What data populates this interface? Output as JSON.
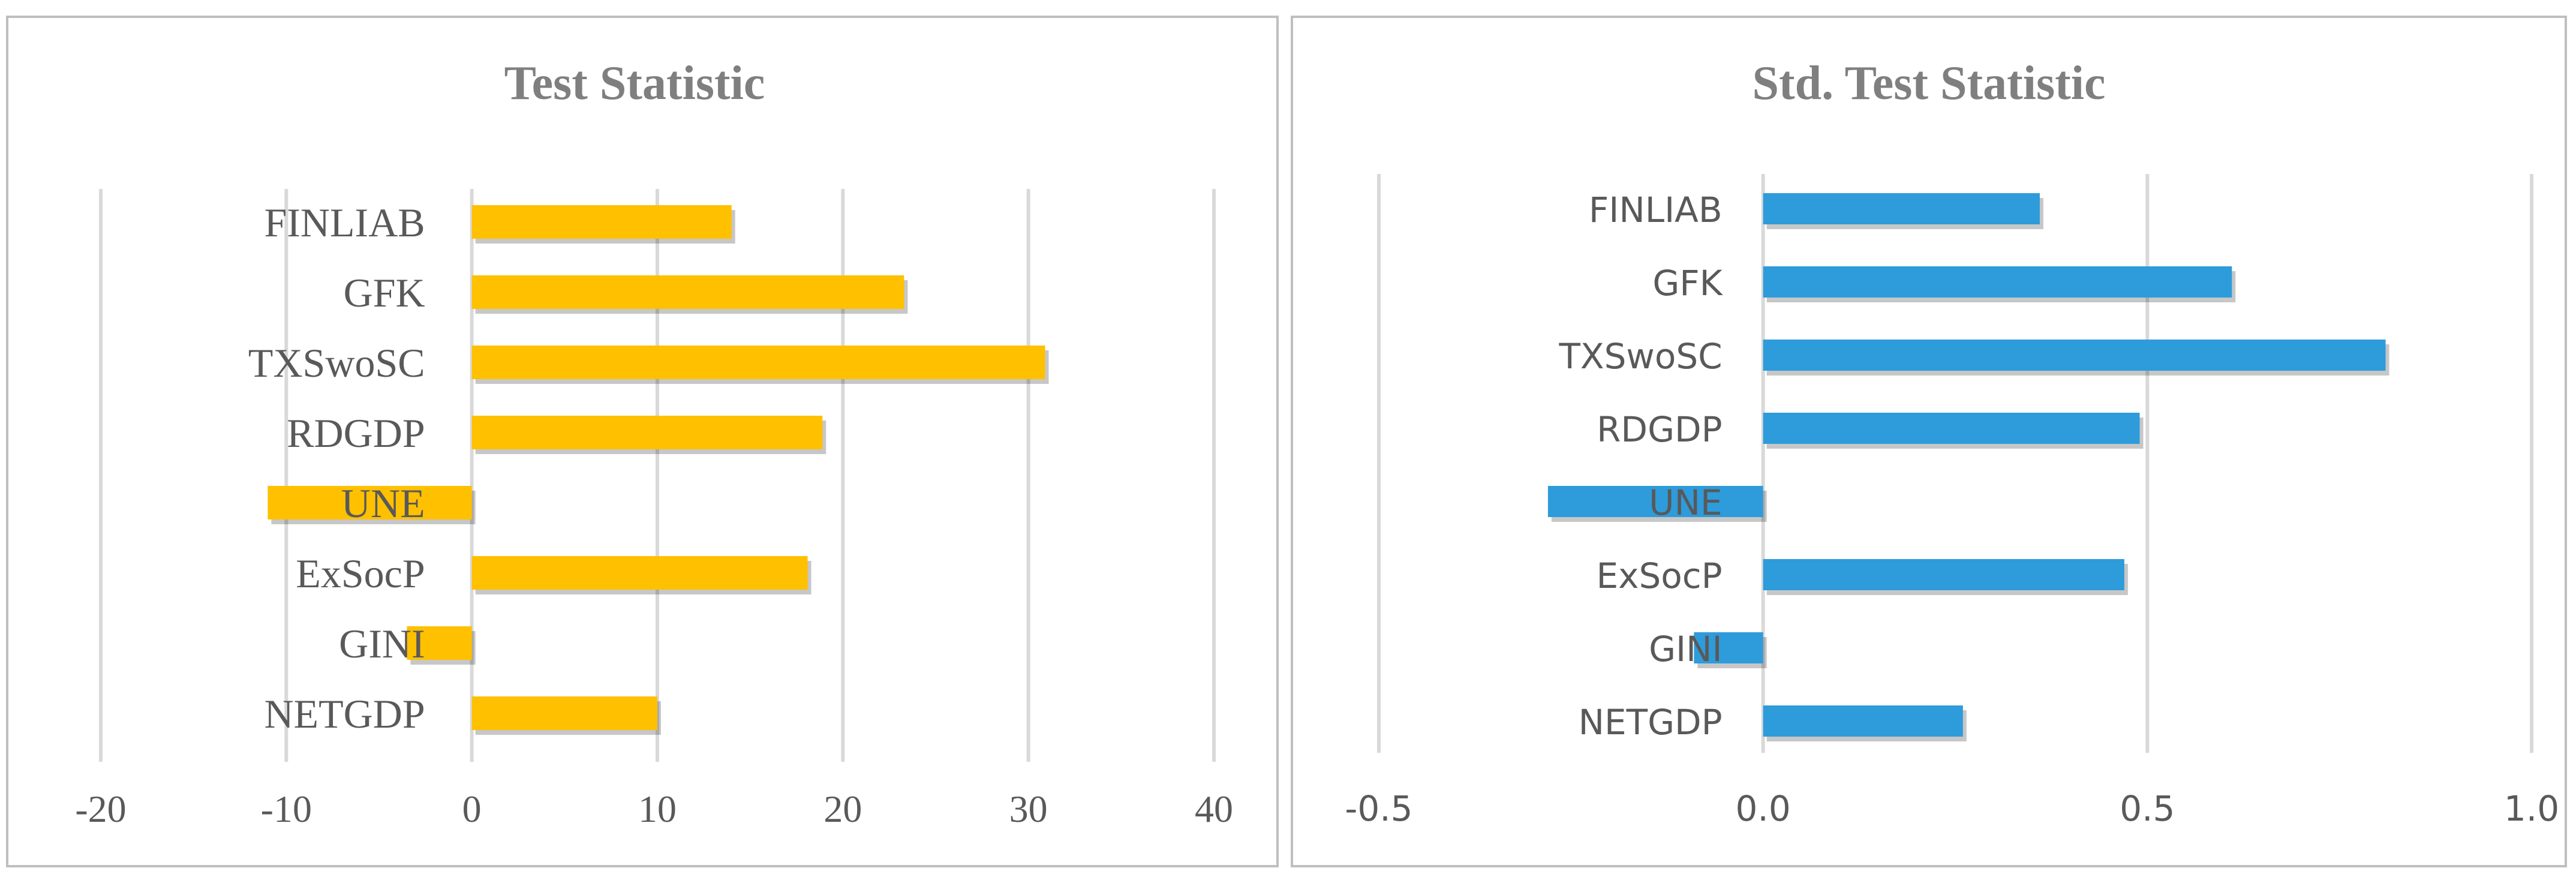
{
  "chart_data": [
    {
      "type": "bar",
      "orientation": "horizontal",
      "title": "Test Statistic",
      "categories": [
        "FINLIAB",
        "GFK",
        "TXSwoSC",
        "RDGDP",
        "UNE",
        "ExSocP",
        "GINI",
        "NETGDP"
      ],
      "values": [
        14,
        23.3,
        30.9,
        18.9,
        -11,
        18.1,
        -3.5,
        10
      ],
      "xlim": [
        -20,
        40
      ],
      "xticks": [
        "-20",
        "-10",
        "0",
        "10",
        "20",
        "30",
        "40"
      ],
      "grid": true,
      "legend": "none",
      "color": "#FFC000"
    },
    {
      "type": "bar",
      "orientation": "horizontal",
      "title": "Std. Test Statistic",
      "categories": [
        "FINLIAB",
        "GFK",
        "TXSwoSC",
        "RDGDP",
        "UNE",
        "ExSocP",
        "GINI",
        "NETGDP"
      ],
      "values": [
        0.36,
        0.61,
        0.81,
        0.49,
        -0.28,
        0.47,
        -0.09,
        0.26
      ],
      "xlim": [
        -0.5,
        1.0
      ],
      "xticks": [
        "-0.5",
        "0.0",
        "0.5",
        "1.0"
      ],
      "grid": true,
      "legend": "none",
      "color": "#2E9BDB"
    }
  ]
}
